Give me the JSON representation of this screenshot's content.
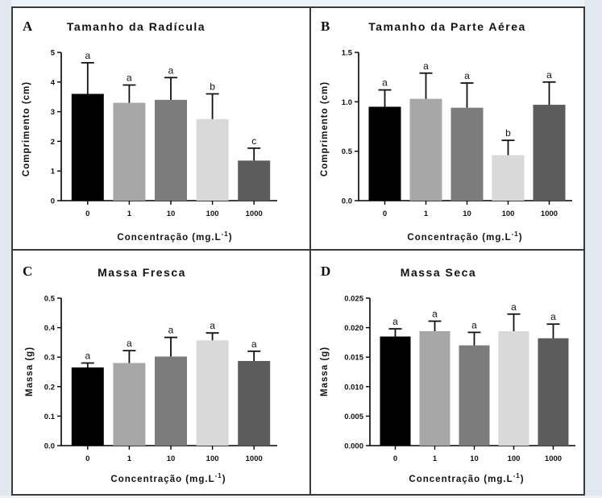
{
  "colors": {
    "panel_border": "#3a3a3a",
    "bar_0": "#000000",
    "bar_1": "#a7a7a7",
    "bar_10": "#7c7c7c",
    "bar_100": "#d9d9d9",
    "bar_1000": "#5c5c5c"
  },
  "chart_data": [
    {
      "type": "bar",
      "panel": "A",
      "title": "Tamanho da Radícula",
      "xlabel": "Concentração (mg.L",
      "xlabel_superscript": "-1",
      "xlabel_suffix": ")",
      "ylabel": "Comprimento (cm)",
      "categories": [
        "0",
        "1",
        "10",
        "100",
        "1000"
      ],
      "values": [
        3.6,
        3.3,
        3.4,
        2.75,
        1.35
      ],
      "errors": [
        1.05,
        0.6,
        0.75,
        0.85,
        0.42
      ],
      "significance": [
        "a",
        "a",
        "a",
        "b",
        "c"
      ],
      "ylim": [
        0,
        5
      ],
      "yticks": [
        "0",
        "1",
        "2",
        "3",
        "4",
        "5"
      ],
      "ytick_values": [
        0,
        1,
        2,
        3,
        4,
        5
      ]
    },
    {
      "type": "bar",
      "panel": "B",
      "title": "Tamanho da Parte Aérea",
      "xlabel": "Concentração (mg.L",
      "xlabel_superscript": "-1",
      "xlabel_suffix": ")",
      "ylabel": "Comprimento (cm)",
      "categories": [
        "0",
        "1",
        "10",
        "100",
        "1000"
      ],
      "values": [
        0.95,
        1.03,
        0.94,
        0.46,
        0.97
      ],
      "errors": [
        0.17,
        0.26,
        0.25,
        0.15,
        0.23
      ],
      "significance": [
        "a",
        "a",
        "a",
        "b",
        "a"
      ],
      "ylim": [
        0,
        1.5
      ],
      "yticks": [
        "0.0",
        "0.5",
        "1.0",
        "1.5"
      ],
      "ytick_values": [
        0,
        0.5,
        1.0,
        1.5
      ]
    },
    {
      "type": "bar",
      "panel": "C",
      "title": "Massa Fresca",
      "xlabel": "Concentração (mg.L",
      "xlabel_superscript": "-1",
      "xlabel_suffix": ")",
      "ylabel": "Massa (g)",
      "categories": [
        "0",
        "1",
        "10",
        "100",
        "1000"
      ],
      "values": [
        0.265,
        0.28,
        0.302,
        0.357,
        0.287
      ],
      "errors": [
        0.015,
        0.042,
        0.065,
        0.025,
        0.033
      ],
      "significance": [
        "a",
        "a",
        "a",
        "a",
        "a"
      ],
      "ylim": [
        0,
        0.5
      ],
      "yticks": [
        "0.0",
        "0.1",
        "0.2",
        "0.3",
        "0.4",
        "0.5"
      ],
      "ytick_values": [
        0,
        0.1,
        0.2,
        0.3,
        0.4,
        0.5
      ]
    },
    {
      "type": "bar",
      "panel": "D",
      "title": "Massa Seca",
      "xlabel": "Concentração (mg.L",
      "xlabel_superscript": "-1",
      "xlabel_suffix": ")",
      "ylabel": "Massa (g)",
      "categories": [
        "0",
        "1",
        "10",
        "100",
        "1000"
      ],
      "values": [
        0.0185,
        0.0194,
        0.017,
        0.0194,
        0.0182
      ],
      "errors": [
        0.0013,
        0.0017,
        0.0022,
        0.0029,
        0.0024
      ],
      "significance": [
        "a",
        "a",
        "a",
        "a",
        "a"
      ],
      "ylim": [
        0,
        0.025
      ],
      "yticks": [
        "0.000",
        "0.005",
        "0.010",
        "0.015",
        "0.020",
        "0.025"
      ],
      "ytick_values": [
        0,
        0.005,
        0.01,
        0.015,
        0.02,
        0.025
      ]
    }
  ]
}
